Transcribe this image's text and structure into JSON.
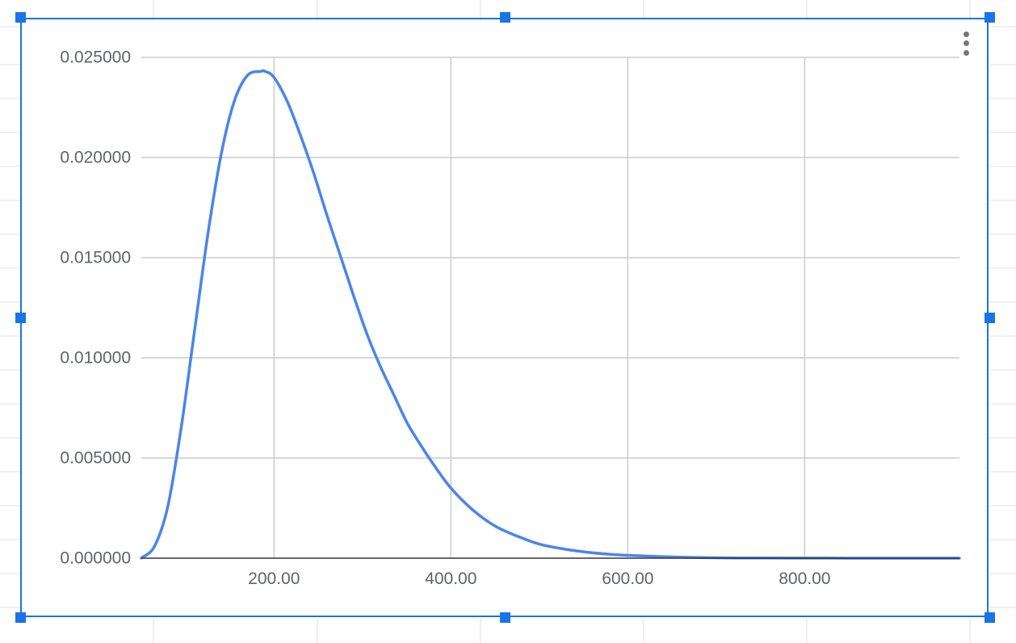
{
  "colors": {
    "sheet_gridline": "#e2e2e2",
    "chart_gridline": "#cccccc",
    "baseline": "#333333",
    "series_line": "#4a86e8",
    "selection_border": "#1a73e8",
    "selection_handle": "#1a73e8",
    "menu_dots": "#757575"
  },
  "icons": {
    "chart_menu": "more-vert-icon"
  },
  "chart_data": {
    "type": "line",
    "title": "",
    "xlabel": "",
    "ylabel": "",
    "xlim": [
      50,
      975
    ],
    "ylim": [
      0,
      0.025
    ],
    "grid": true,
    "legend": "none",
    "x_ticks": [
      {
        "value": 200,
        "label": "200.00"
      },
      {
        "value": 400,
        "label": "400.00"
      },
      {
        "value": 600,
        "label": "600.00"
      },
      {
        "value": 800,
        "label": "800.00"
      }
    ],
    "y_ticks": [
      {
        "value": 0,
        "label": "0.000000"
      },
      {
        "value": 0.005,
        "label": "0.005000"
      },
      {
        "value": 0.01,
        "label": "0.010000"
      },
      {
        "value": 0.015,
        "label": "0.015000"
      },
      {
        "value": 0.02,
        "label": "0.020000"
      },
      {
        "value": 0.025,
        "label": "0.025000"
      }
    ],
    "series": [
      {
        "x": [
          50,
          65,
          80,
          95,
          110,
          125,
          140,
          155,
          170,
          185,
          190,
          200,
          215,
          230,
          245,
          260,
          275,
          290,
          305,
          320,
          335,
          350,
          365,
          380,
          400,
          425,
          450,
          475,
          500,
          525,
          550,
          575,
          600,
          650,
          700,
          750,
          800,
          850,
          900,
          975
        ],
        "y": [
          1e-05,
          0.0006,
          0.0026,
          0.0065,
          0.0113,
          0.0161,
          0.0201,
          0.0228,
          0.0241,
          0.0243,
          0.0243,
          0.024,
          0.0228,
          0.0211,
          0.0192,
          0.0171,
          0.0151,
          0.0131,
          0.0112,
          0.0096,
          0.0082,
          0.0068,
          0.0057,
          0.0047,
          0.0035,
          0.0024,
          0.0016,
          0.0011,
          0.0007,
          0.00048,
          0.00032,
          0.00021,
          0.00014,
          6e-05,
          2e-05,
          1e-05,
          4e-06,
          2e-06,
          1e-06,
          0.0
        ]
      }
    ]
  }
}
